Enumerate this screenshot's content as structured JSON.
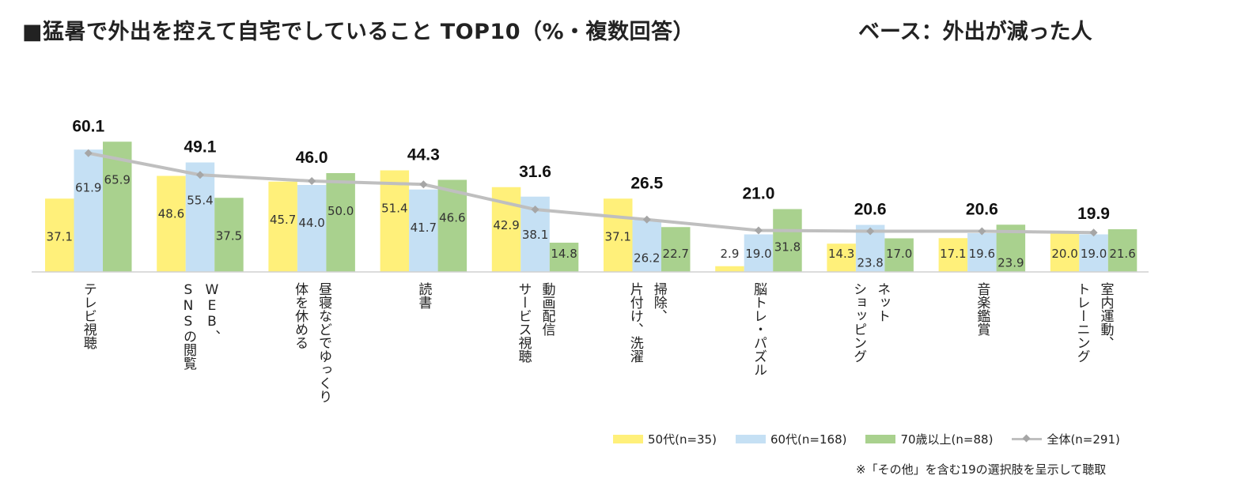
{
  "header": {
    "title": "■猛暑で外出を控えて自宅でしていること TOP10（%・複数回答）",
    "base": "ベース：外出が減った人"
  },
  "colors": {
    "s50": "#fff07a",
    "s60": "#c5e0f4",
    "s70": "#a9d18e",
    "total": "#bfbfbf",
    "total_marker": "#a6a6a6"
  },
  "chart_data": {
    "type": "bar",
    "title": "猛暑で外出を控えて自宅でしていること TOP10",
    "ylim": [
      0,
      70
    ],
    "categories": [
      [
        "テレビ視聴"
      ],
      [
        "SNSの閲覧",
        "WEB、"
      ],
      [
        "体を休める",
        "昼寝などでゆっくり"
      ],
      [
        "読書"
      ],
      [
        "サービス視聴",
        "動画配信"
      ],
      [
        "片付け、洗濯",
        "掃除、"
      ],
      [
        "脳トレ・パズル"
      ],
      [
        "ショッピング",
        "ネット"
      ],
      [
        "音楽鑑賞"
      ],
      [
        "トレーニング",
        "室内運動、"
      ]
    ],
    "series": [
      {
        "name": "50代(n=35)",
        "values": [
          37.1,
          48.6,
          45.7,
          51.4,
          42.9,
          37.1,
          2.9,
          14.3,
          17.1,
          20.0
        ],
        "labels": [
          "37.1",
          "48.6",
          "45.7",
          "51.4",
          "42.9",
          "37.1",
          "2.9",
          "14.3",
          "17.1",
          "20.0"
        ]
      },
      {
        "name": "60代(n=168)",
        "values": [
          61.9,
          55.4,
          44.0,
          41.7,
          38.1,
          26.2,
          19.0,
          23.8,
          19.6,
          19.0
        ],
        "labels": [
          "61.9",
          "55.4",
          "44.0",
          "41.7",
          "38.1",
          "26.2",
          "19.0",
          "23.8",
          "19.6",
          "19.0"
        ]
      },
      {
        "name": "70歳以上(n=88)",
        "values": [
          65.9,
          37.5,
          50.0,
          46.6,
          14.8,
          22.7,
          31.8,
          17.0,
          23.9,
          21.6
        ],
        "labels": [
          "65.9",
          "37.5",
          "50.0",
          "46.6",
          "14.8",
          "22.7",
          "31.8",
          "17.0",
          "23.9",
          "21.6"
        ]
      }
    ],
    "total": {
      "name": "全体(n=291)",
      "values": [
        60.1,
        49.1,
        46.0,
        44.3,
        31.6,
        26.5,
        21.0,
        20.6,
        20.6,
        19.9
      ],
      "labels": [
        "60.1",
        "49.1",
        "46.0",
        "44.3",
        "31.6",
        "26.5",
        "21.0",
        "20.6",
        "20.6",
        "19.9"
      ]
    },
    "legend": [
      "50代(n=35)",
      "60代(n=168)",
      "70歳以上(n=88)",
      "全体(n=291)"
    ]
  },
  "note": "※「その他」を含む19の選択肢を呈示して聴取"
}
